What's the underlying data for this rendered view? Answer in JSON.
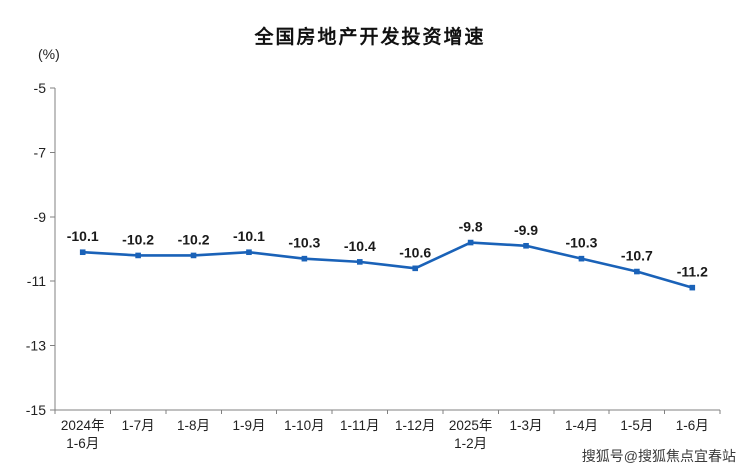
{
  "title": "全国房地产开发投资增速",
  "unit_label": "(%)",
  "watermark": "搜狐号@搜狐焦点宜春站",
  "chart_data": {
    "type": "line",
    "title": "全国房地产开发投资增速",
    "ylabel": "(%)",
    "categories": [
      "2024年\n1-6月",
      "1-7月",
      "1-8月",
      "1-9月",
      "1-10月",
      "1-11月",
      "1-12月",
      "2025年\n1-2月",
      "1-3月",
      "1-4月",
      "1-5月",
      "1-6月"
    ],
    "values": [
      -10.1,
      -10.2,
      -10.2,
      -10.1,
      -10.3,
      -10.4,
      -10.6,
      -9.8,
      -9.9,
      -10.3,
      -10.7,
      -11.2
    ],
    "data_labels": [
      "-10.1",
      "-10.2",
      "-10.2",
      "-10.1",
      "-10.3",
      "-10.4",
      "-10.6",
      "-9.8",
      "-9.9",
      "-10.3",
      "-10.7",
      "-11.2"
    ],
    "ylim": [
      -15,
      -5
    ],
    "yticks": [
      -5,
      -7,
      -9,
      -11,
      -13,
      -15
    ],
    "line_color": "#1a62b8",
    "axis_color": "#808080",
    "label_color": "#1a1a1a",
    "grid": false,
    "legend": "none"
  }
}
